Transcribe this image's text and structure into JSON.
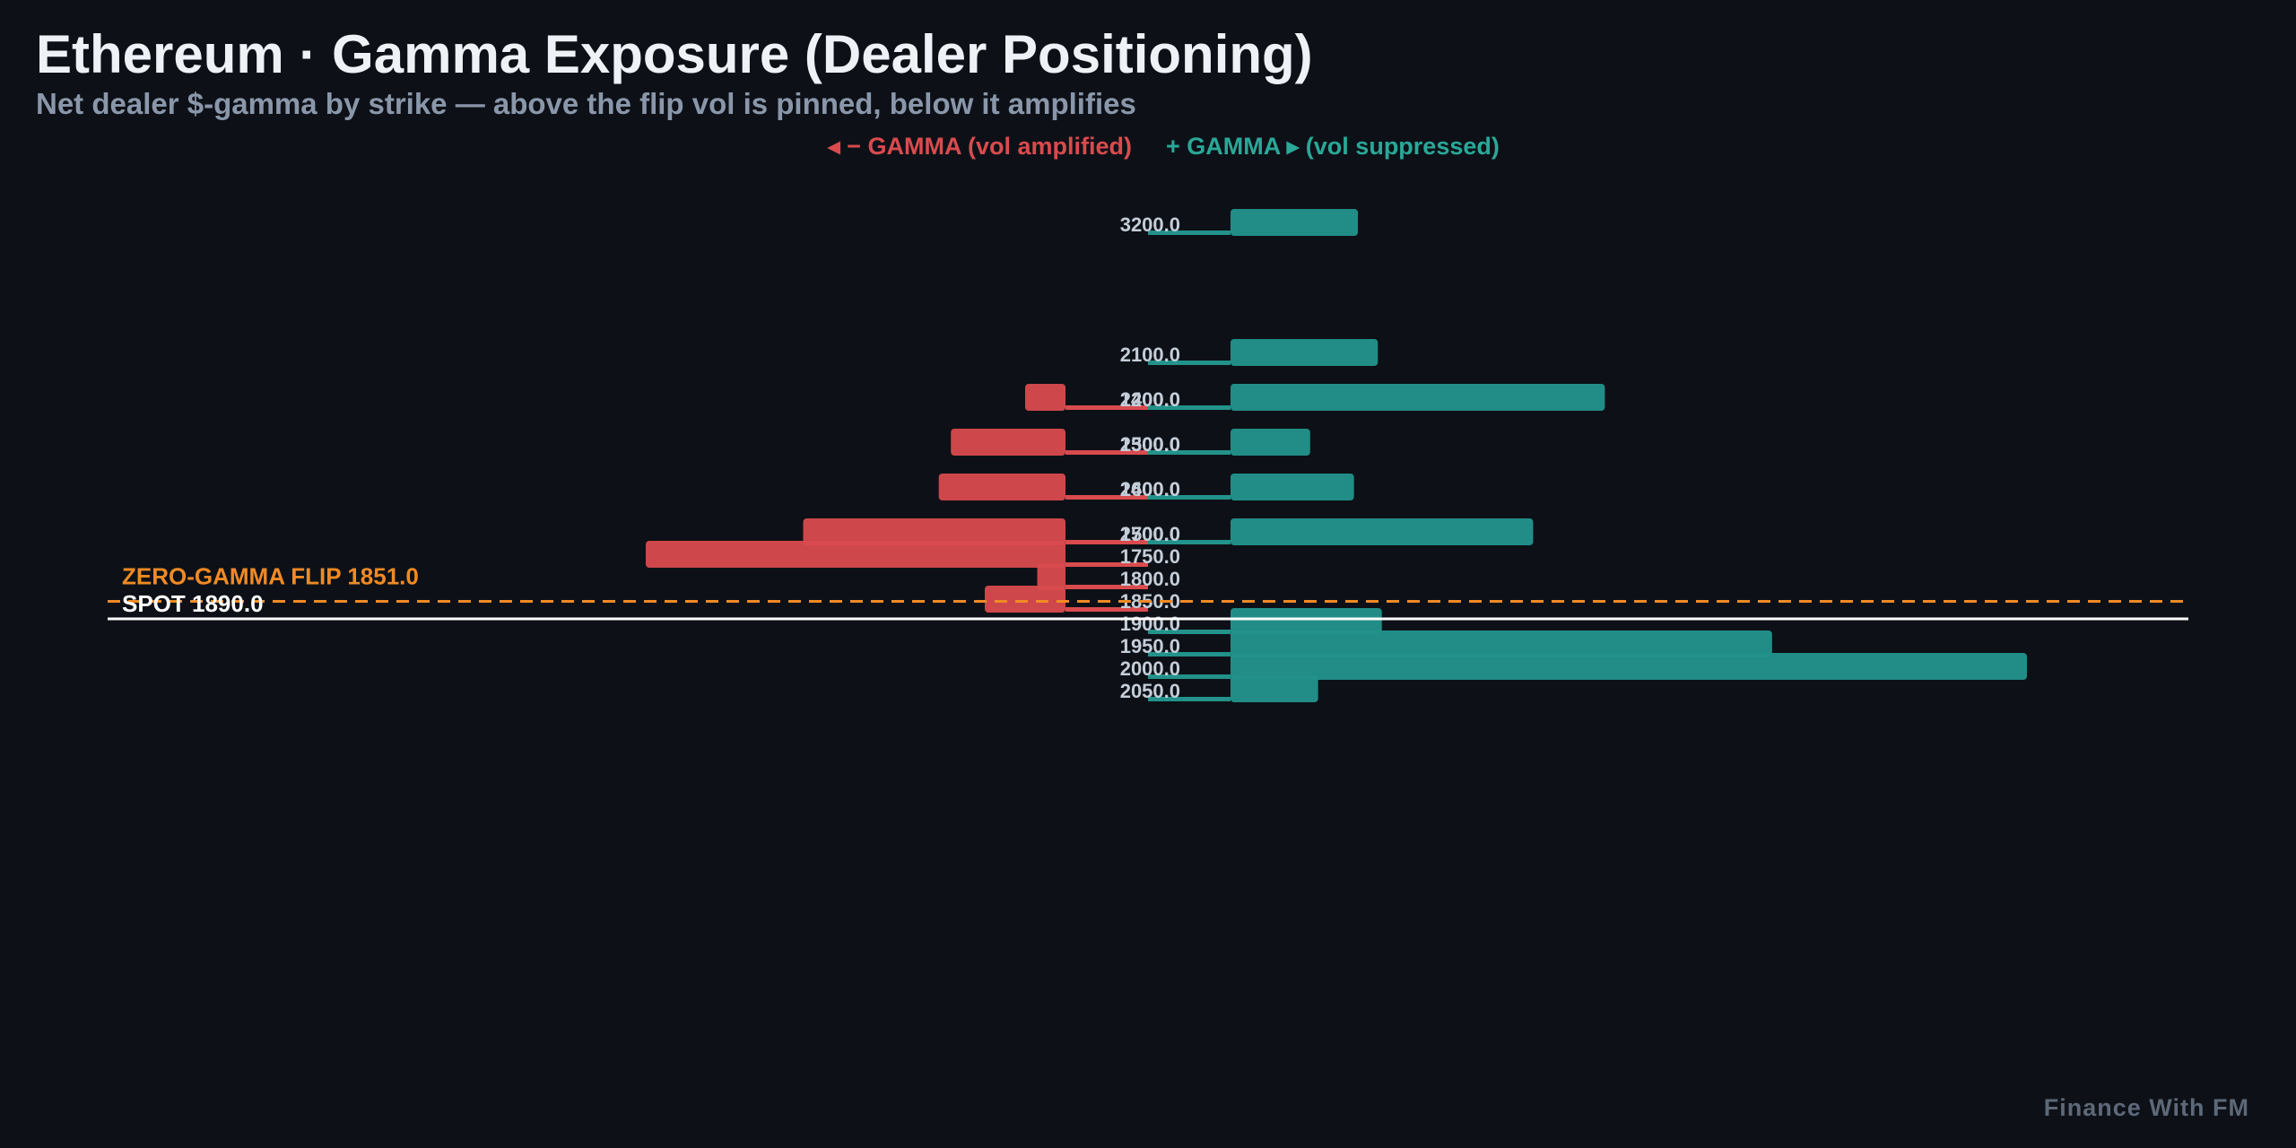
{
  "title": "Ethereum · Gamma Exposure (Dealer Positioning)",
  "subtitle": "Net dealer $-gamma by strike — above the flip vol is pinned, below it amplifies",
  "watermark": "Finance With FM",
  "colors": {
    "background": "#0d1117",
    "positive": "#22928a",
    "negative": "#d94b4e",
    "spot": "#ffffff",
    "flip": "#f08a24",
    "tick_text": "#c4cdd8"
  },
  "chart_data": {
    "type": "bar",
    "orientation": "horizontal",
    "legend": {
      "negative": "◂ − GAMMA (vol amplified)",
      "positive": "+ GAMMA ▸ (vol suppressed)",
      "placement": "top-center"
    },
    "y_axis": {
      "label": "",
      "ylim": [
        1350,
        3250
      ]
    },
    "x_axis": {
      "label": "",
      "unit": "relative net dealer $-gamma"
    },
    "strikes": [
      "3200.0",
      "2500.0",
      "2400.0",
      "2300.0",
      "2200.0",
      "2100.0",
      "2050.0",
      "2000.0",
      "1950.0",
      "1900.0",
      "1850.0",
      "1800.0",
      "1750.0",
      "1700.0",
      "1600.0",
      "1500.0",
      "1400.0"
    ],
    "series": [
      {
        "sign": "positive",
        "bars": [
          {
            "strike": 3200,
            "value": 0.16
          },
          {
            "strike": 2500,
            "value": 0.38
          },
          {
            "strike": 2400,
            "value": 0.155
          },
          {
            "strike": 2300,
            "value": 0.1
          },
          {
            "strike": 2200,
            "value": 0.47
          },
          {
            "strike": 2100,
            "value": 0.185
          },
          {
            "strike": 2050,
            "value": 0.11
          },
          {
            "strike": 2000,
            "value": 1.0
          },
          {
            "strike": 1950,
            "value": 0.68
          },
          {
            "strike": 1900,
            "value": 0.19
          }
        ]
      },
      {
        "sign": "negative",
        "bars": [
          {
            "strike": 1850,
            "value": -0.1
          },
          {
            "strike": 1800,
            "value": -0.035
          },
          {
            "strike": 1750,
            "value": -0.52
          },
          {
            "strike": 1700,
            "value": -0.325
          },
          {
            "strike": 1600,
            "value": -0.157
          },
          {
            "strike": 1500,
            "value": -0.142
          },
          {
            "strike": 1400,
            "value": -0.05
          }
        ]
      }
    ],
    "reference_lines": [
      {
        "label": "SPOT 1890.0",
        "value": 1890.0,
        "style": "solid",
        "color": "#ffffff"
      },
      {
        "label": "ZERO-GAMMA FLIP 1851.0",
        "value": 1851.0,
        "style": "dashed",
        "color": "#f08a24"
      }
    ],
    "grid": false
  }
}
